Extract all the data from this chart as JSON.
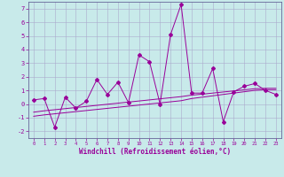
{
  "x": [
    0,
    1,
    2,
    3,
    4,
    5,
    6,
    7,
    8,
    9,
    10,
    11,
    12,
    13,
    14,
    15,
    16,
    17,
    18,
    19,
    20,
    21,
    22,
    23
  ],
  "y_main": [
    0.3,
    0.4,
    -1.7,
    0.5,
    -0.3,
    0.2,
    1.8,
    0.7,
    1.6,
    0.1,
    3.6,
    3.1,
    0.0,
    5.1,
    7.3,
    0.8,
    0.8,
    2.6,
    -1.3,
    0.9,
    1.3,
    1.5,
    1.0,
    0.7
  ],
  "y_trend1": [
    -0.9,
    -0.8,
    -0.72,
    -0.64,
    -0.56,
    -0.48,
    -0.4,
    -0.32,
    -0.24,
    -0.16,
    -0.08,
    0.0,
    0.08,
    0.16,
    0.24,
    0.4,
    0.5,
    0.6,
    0.7,
    0.8,
    0.9,
    1.0,
    1.05,
    1.05
  ],
  "y_trend2": [
    -0.6,
    -0.5,
    -0.42,
    -0.34,
    -0.26,
    -0.18,
    -0.1,
    -0.02,
    0.06,
    0.14,
    0.22,
    0.3,
    0.38,
    0.46,
    0.54,
    0.65,
    0.72,
    0.8,
    0.88,
    0.96,
    1.04,
    1.12,
    1.15,
    1.15
  ],
  "xlim": [
    -0.5,
    23.5
  ],
  "ylim": [
    -2.5,
    7.5
  ],
  "yticks": [
    -2,
    -1,
    0,
    1,
    2,
    3,
    4,
    5,
    6,
    7
  ],
  "xticks": [
    0,
    1,
    2,
    3,
    4,
    5,
    6,
    7,
    8,
    9,
    10,
    11,
    12,
    13,
    14,
    15,
    16,
    17,
    18,
    19,
    20,
    21,
    22,
    23
  ],
  "xlabel": "Windchill (Refroidissement éolien,°C)",
  "line_color": "#990099",
  "bg_color": "#c8eaea",
  "grid_color": "#aaaacc",
  "spine_color": "#666699"
}
